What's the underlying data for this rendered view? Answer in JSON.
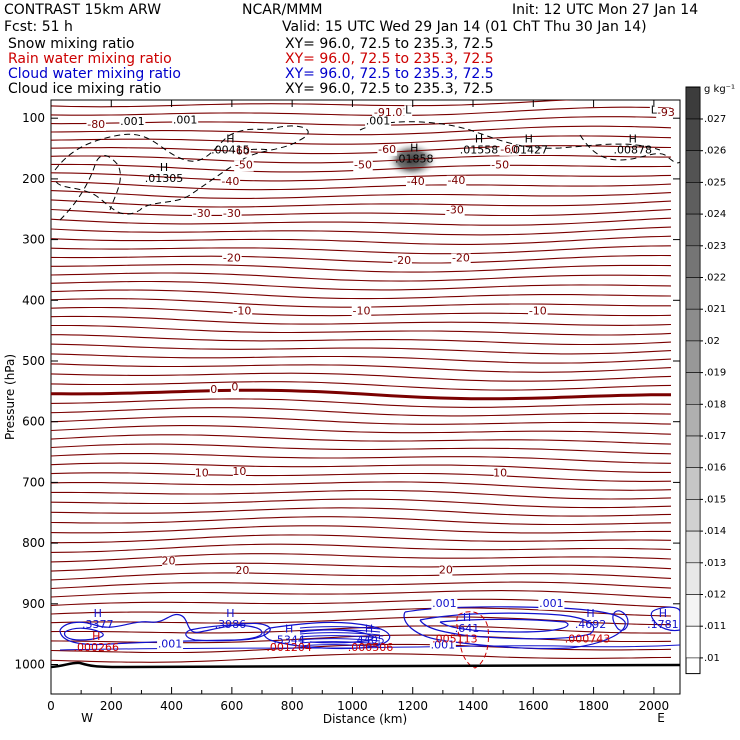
{
  "header": {
    "model": "CONTRAST 15km ARW",
    "org": "NCAR/MMM",
    "init": "Init: 12 UTC Mon 27 Jan 14",
    "fcst": "Fcst:    51 h",
    "valid": "Valid: 15 UTC Wed 29 Jan 14 (01 ChT Thu 30 Jan 14)",
    "fields": [
      {
        "name": "Snow mixing ratio",
        "xy": "XY=  96.0, 72.5 to 235.3, 72.5",
        "color": "#000000"
      },
      {
        "name": "Rain water mixing ratio",
        "xy": "XY=  96.0, 72.5 to 235.3, 72.5",
        "color": "#cc0000"
      },
      {
        "name": "Cloud water mixing ratio",
        "xy": "XY=  96.0, 72.5 to 235.3, 72.5",
        "color": "#0000cc"
      },
      {
        "name": "Cloud ice mixing ratio",
        "xy": "XY=  96.0, 72.5 to 235.3, 72.5",
        "color": "#000000"
      }
    ]
  },
  "chart_data": {
    "type": "contour",
    "xlabel": "Distance (km)",
    "ylabel": "Pressure (hPa)",
    "xlim": [
      0,
      2090
    ],
    "ylim": [
      1050,
      53
    ],
    "xticks": [
      0,
      200,
      400,
      600,
      800,
      1000,
      1200,
      1400,
      1600,
      1800,
      2000
    ],
    "yticks": [
      100,
      200,
      300,
      400,
      500,
      600,
      700,
      800,
      900,
      1000
    ],
    "x_end_labels": {
      "left": "W",
      "right": "E"
    },
    "colorbar": {
      "unit": "g kg⁻¹",
      "labels": [
        ".027",
        ".026",
        ".025",
        ".024",
        ".023",
        ".022",
        ".021",
        ".02",
        ".019",
        ".018",
        ".017",
        ".016",
        ".015",
        ".014",
        ".013",
        ".012",
        ".011",
        ".01"
      ]
    },
    "temperature_labels": [
      {
        "x": 150,
        "p": 116,
        "text": "-80"
      },
      {
        "x": 2040,
        "p": 96,
        "text": "-93"
      },
      {
        "x": 1130,
        "p": 96,
        "text": "-91.01"
      },
      {
        "x": 630,
        "p": 160,
        "text": "-60"
      },
      {
        "x": 1115,
        "p": 157,
        "text": "-60"
      },
      {
        "x": 1520,
        "p": 157,
        "text": "-60"
      },
      {
        "x": 640,
        "p": 183,
        "text": "-50"
      },
      {
        "x": 1035,
        "p": 183,
        "text": "-50"
      },
      {
        "x": 1490,
        "p": 183,
        "text": "-50"
      },
      {
        "x": 595,
        "p": 210,
        "text": "-40"
      },
      {
        "x": 1210,
        "p": 210,
        "text": "-40"
      },
      {
        "x": 1345,
        "p": 208,
        "text": "-40"
      },
      {
        "x": 500,
        "p": 263,
        "text": "-30"
      },
      {
        "x": 600,
        "p": 263,
        "text": "-30"
      },
      {
        "x": 1340,
        "p": 257,
        "text": "-30"
      },
      {
        "x": 600,
        "p": 336,
        "text": "-20"
      },
      {
        "x": 1165,
        "p": 340,
        "text": "-20"
      },
      {
        "x": 1360,
        "p": 336,
        "text": "-20"
      },
      {
        "x": 635,
        "p": 423,
        "text": "-10"
      },
      {
        "x": 1030,
        "p": 423,
        "text": "-10"
      },
      {
        "x": 1615,
        "p": 423,
        "text": "-10"
      },
      {
        "x": 540,
        "p": 553,
        "text": "0"
      },
      {
        "x": 610,
        "p": 549,
        "text": "0"
      },
      {
        "x": 500,
        "p": 690,
        "text": "10"
      },
      {
        "x": 625,
        "p": 688,
        "text": "10"
      },
      {
        "x": 1490,
        "p": 690,
        "text": "10"
      },
      {
        "x": 390,
        "p": 835,
        "text": "20"
      },
      {
        "x": 635,
        "p": 851,
        "text": "20"
      },
      {
        "x": 1310,
        "p": 850,
        "text": "20"
      }
    ],
    "ice_labels": [
      {
        "x": 270,
        "p": 111,
        "text": ".001"
      },
      {
        "x": 445,
        "p": 109,
        "text": ".001"
      },
      {
        "x": 1085,
        "p": 110,
        "text": ".001"
      },
      {
        "x": 595,
        "p": 140,
        "text": "H",
        "sub": ".00415"
      },
      {
        "x": 375,
        "p": 187,
        "text": "H",
        "sub": ".01305"
      },
      {
        "x": 1205,
        "p": 155,
        "text": "H",
        "sub": ".01858"
      },
      {
        "x": 1420,
        "p": 140,
        "text": "H",
        "sub": ".01558"
      },
      {
        "x": 1585,
        "p": 140,
        "text": "H",
        "sub": ".01427"
      },
      {
        "x": 1930,
        "p": 140,
        "text": "H",
        "sub": ".00878"
      },
      {
        "x": 1185,
        "p": 92,
        "text": "L"
      },
      {
        "x": 2000,
        "p": 92,
        "text": "L"
      }
    ],
    "cloudwater_labels": [
      {
        "x": 155,
        "p": 922,
        "text": "H",
        "sub": ".3377"
      },
      {
        "x": 595,
        "p": 922,
        "text": "H",
        "sub": ".3986"
      },
      {
        "x": 790,
        "p": 947,
        "text": "H",
        "sub": ".5344"
      },
      {
        "x": 1055,
        "p": 947,
        "text": "H",
        "sub": ".4405"
      },
      {
        "x": 1380,
        "p": 928,
        "text": "H",
        "sub": ".641"
      },
      {
        "x": 1790,
        "p": 922,
        "text": "H",
        "sub": ".4692"
      },
      {
        "x": 2030,
        "p": 922,
        "text": "H",
        "sub": ".1781"
      },
      {
        "x": 1305,
        "p": 905,
        "text": ".001"
      },
      {
        "x": 1660,
        "p": 905,
        "text": ".001"
      },
      {
        "x": 395,
        "p": 972,
        "text": ".001"
      },
      {
        "x": 1300,
        "p": 974,
        "text": ".001"
      }
    ],
    "rain_labels": [
      {
        "x": 150,
        "p": 960,
        "text": "H",
        "sub": ".000266"
      },
      {
        "x": 790,
        "p": 960,
        "text": "",
        "sub": ".001204"
      },
      {
        "x": 1060,
        "p": 960,
        "text": "",
        "sub": ".000506"
      },
      {
        "x": 1340,
        "p": 946,
        "text": "",
        "sub": ".005113"
      },
      {
        "x": 1780,
        "p": 946,
        "text": "",
        "sub": ".000743"
      }
    ],
    "shaded_max": {
      "x": 1210,
      "p": 165,
      "value": 0.027
    }
  }
}
